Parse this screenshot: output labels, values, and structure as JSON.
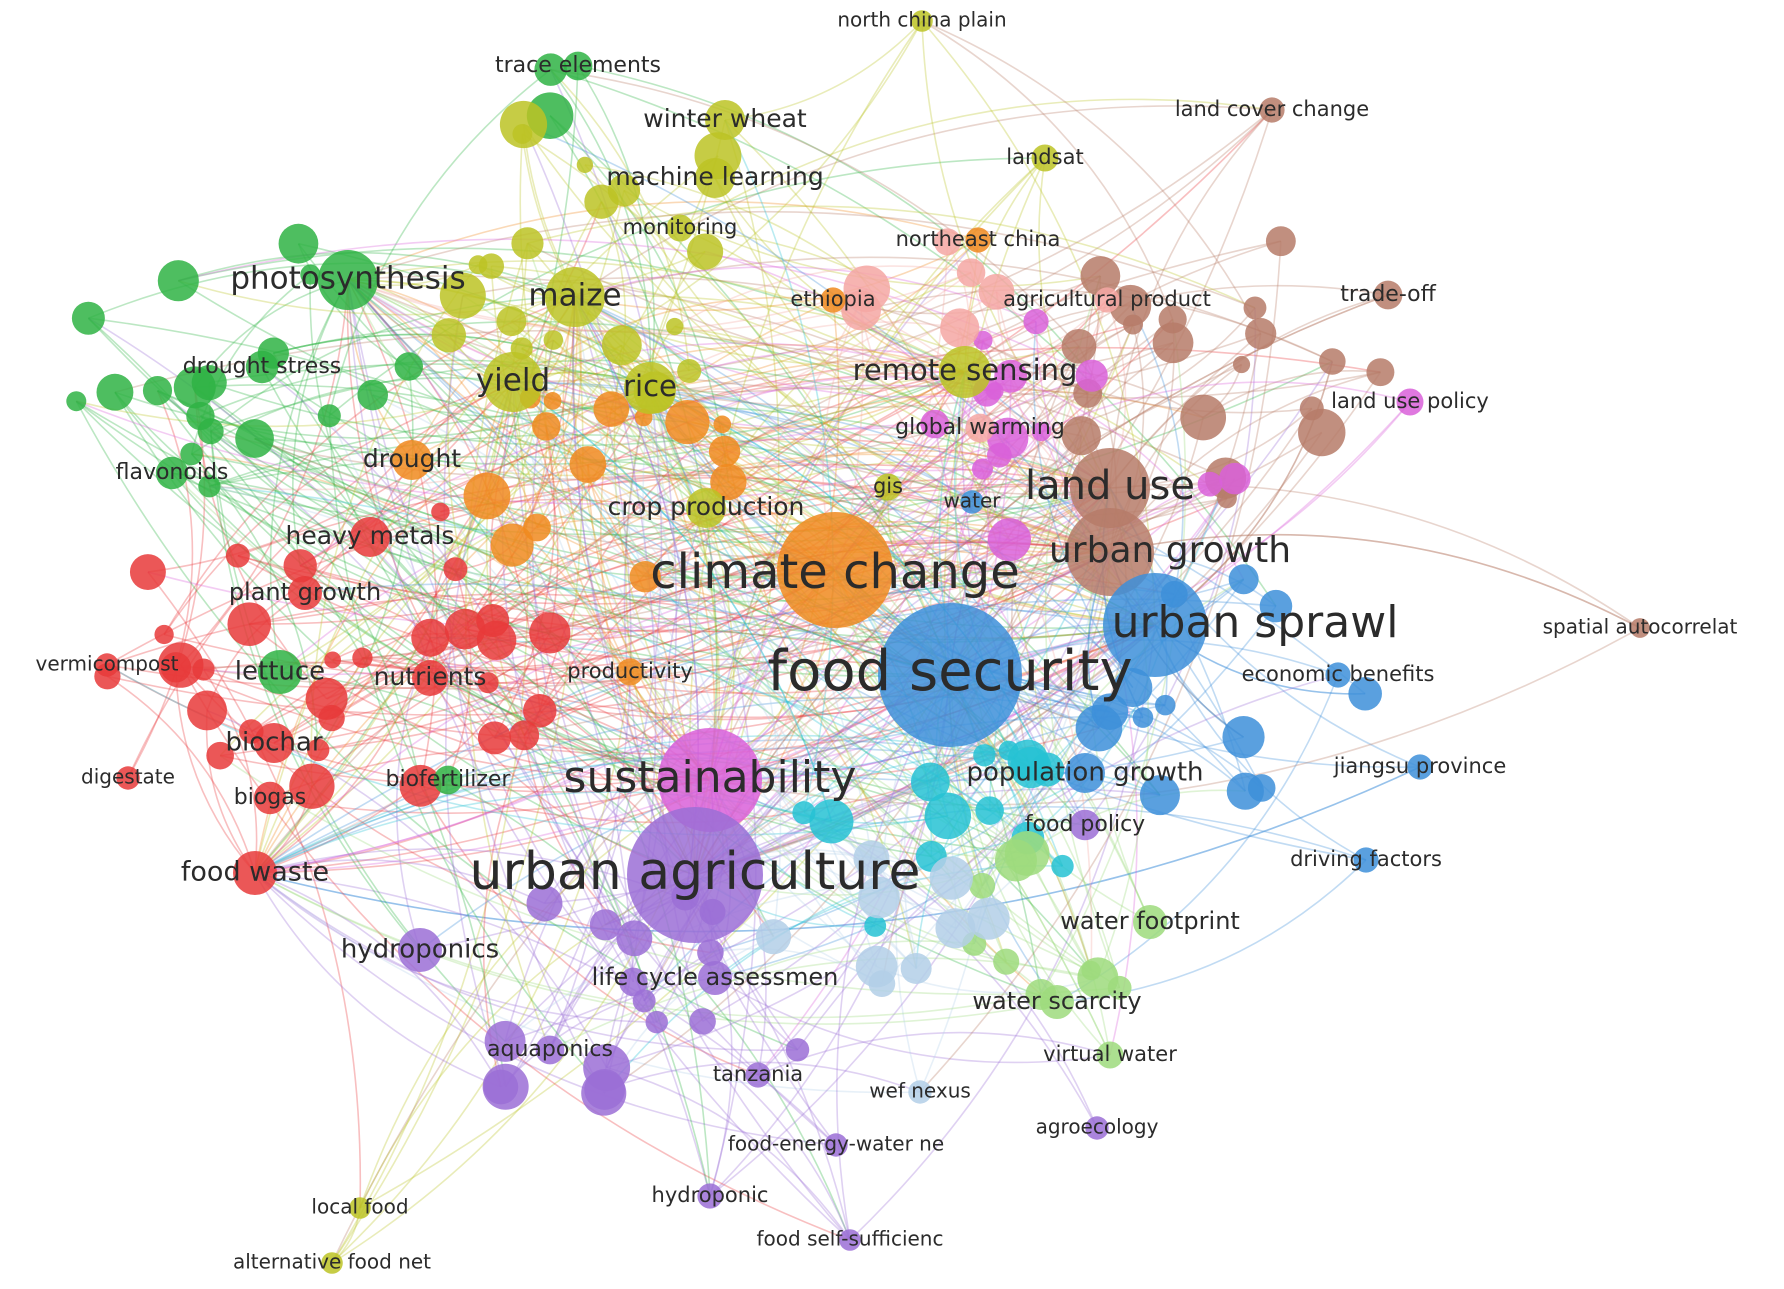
{
  "network": {
    "clusters": {
      "red": "#e8393a",
      "green": "#2fb344",
      "olive": "#bcc325",
      "orange": "#f08a1e",
      "brown": "#b67b68",
      "pink": "#d960d9",
      "blue": "#3d8fd9",
      "purple": "#9b6fd6",
      "cyan": "#26c2d4",
      "lightgreen": "#9ddb7c",
      "lightblue": "#b3cfe8",
      "salmon": "#f4a7a3"
    },
    "nodes": [
      {
        "id": "food-security",
        "label": "food security",
        "cluster": "blue",
        "weight": 10
      },
      {
        "id": "urban-agriculture",
        "label": "urban agriculture",
        "cluster": "purple",
        "weight": 9
      },
      {
        "id": "climate-change",
        "label": "climate change",
        "cluster": "orange",
        "weight": 8
      },
      {
        "id": "sustainability",
        "label": "sustainability",
        "cluster": "pink",
        "weight": 7
      },
      {
        "id": "land-use",
        "label": "land use",
        "cluster": "brown",
        "weight": 6
      },
      {
        "id": "urban-sprawl",
        "label": "urban sprawl",
        "cluster": "blue",
        "weight": 7
      },
      {
        "id": "urban-growth",
        "label": "urban growth",
        "cluster": "brown",
        "weight": 5
      },
      {
        "id": "yield",
        "label": "yield",
        "cluster": "olive",
        "weight": 4
      },
      {
        "id": "rice",
        "label": "rice",
        "cluster": "olive",
        "weight": 3.5
      },
      {
        "id": "maize",
        "label": "maize",
        "cluster": "olive",
        "weight": 4
      },
      {
        "id": "photosynthesis",
        "label": "photosynthesis",
        "cluster": "green",
        "weight": 4
      },
      {
        "id": "remote-sensing",
        "label": "remote sensing",
        "cluster": "olive",
        "weight": 3.5
      },
      {
        "id": "winter-wheat",
        "label": "winter wheat",
        "cluster": "olive",
        "weight": 2.5
      },
      {
        "id": "machine-learning",
        "label": "machine learning",
        "cluster": "olive",
        "weight": 2.5
      },
      {
        "id": "crop-production",
        "label": "crop production",
        "cluster": "olive",
        "weight": 2.5
      },
      {
        "id": "drought",
        "label": "drought",
        "cluster": "orange",
        "weight": 2.5
      },
      {
        "id": "heavy-metals",
        "label": "heavy metals",
        "cluster": "red",
        "weight": 2.5
      },
      {
        "id": "plant-growth",
        "label": "plant growth",
        "cluster": "red",
        "weight": 2.2
      },
      {
        "id": "lettuce",
        "label": "lettuce",
        "cluster": "green",
        "weight": 2.8
      },
      {
        "id": "nutrients",
        "label": "nutrients",
        "cluster": "red",
        "weight": 2.4
      },
      {
        "id": "biochar",
        "label": "biochar",
        "cluster": "red",
        "weight": 2.6
      },
      {
        "id": "biogas",
        "label": "biogas",
        "cluster": "red",
        "weight": 1.8
      },
      {
        "id": "food-waste",
        "label": "food waste",
        "cluster": "red",
        "weight": 3
      },
      {
        "id": "hydroponics",
        "label": "hydroponics",
        "cluster": "purple",
        "weight": 2.8
      },
      {
        "id": "life-cycle-assessment",
        "label": "life cycle assessmen",
        "cluster": "purple",
        "weight": 2.2
      },
      {
        "id": "population-growth",
        "label": "population growth",
        "cluster": "blue",
        "weight": 2.6
      },
      {
        "id": "water-footprint",
        "label": "water footprint",
        "cluster": "lightgreen",
        "weight": 2.2
      },
      {
        "id": "water-scarcity",
        "label": "water scarcity",
        "cluster": "lightgreen",
        "weight": 2.2
      },
      {
        "id": "virtual-water",
        "label": "virtual water",
        "cluster": "lightgreen",
        "weight": 1.5
      },
      {
        "id": "food-policy",
        "label": "food policy",
        "cluster": "purple",
        "weight": 1.7
      },
      {
        "id": "economic-benefits",
        "label": "economic benefits",
        "cluster": "blue",
        "weight": 1.4
      },
      {
        "id": "jiangsu-province",
        "label": "jiangsu province",
        "cluster": "blue",
        "weight": 1.4
      },
      {
        "id": "driving-factors",
        "label": "driving factors",
        "cluster": "blue",
        "weight": 1.4
      },
      {
        "id": "spatial-autocorrelation",
        "label": "spatial autocorrelat",
        "cluster": "brown",
        "weight": 1.1
      },
      {
        "id": "land-use-policy",
        "label": "land use policy",
        "cluster": "pink",
        "weight": 1.5
      },
      {
        "id": "trade-off",
        "label": "trade-off",
        "cluster": "brown",
        "weight": 1.6
      },
      {
        "id": "agricultural-product",
        "label": "agricultural product",
        "cluster": "salmon",
        "weight": 1.4
      },
      {
        "id": "northeast-china",
        "label": "northeast china",
        "cluster": "orange",
        "weight": 1.4
      },
      {
        "id": "land-cover-change",
        "label": "land cover change",
        "cluster": "brown",
        "weight": 1.4
      },
      {
        "id": "landsat",
        "label": "landsat",
        "cluster": "olive",
        "weight": 1.5
      },
      {
        "id": "north-china-plain",
        "label": "north china plain",
        "cluster": "olive",
        "weight": 1.2
      },
      {
        "id": "trace-elements",
        "label": "trace elements",
        "cluster": "green",
        "weight": 1.6
      },
      {
        "id": "monitoring",
        "label": "monitoring",
        "cluster": "olive",
        "weight": 1.5
      },
      {
        "id": "ethiopia",
        "label": "ethiopia",
        "cluster": "orange",
        "weight": 1.4
      },
      {
        "id": "global-warming",
        "label": "global warming",
        "cluster": "salmon",
        "weight": 1.6
      },
      {
        "id": "gis",
        "label": "gis",
        "cluster": "olive",
        "weight": 1.5
      },
      {
        "id": "water",
        "label": "water",
        "cluster": "blue",
        "weight": 1.3
      },
      {
        "id": "drought-stress",
        "label": "drought stress",
        "cluster": "green",
        "weight": 1.8
      },
      {
        "id": "flavonoids",
        "label": "flavonoids",
        "cluster": "green",
        "weight": 1.8
      },
      {
        "id": "vermicompost",
        "label": "vermicompost",
        "cluster": "red",
        "weight": 1.3
      },
      {
        "id": "digestate",
        "label": "digestate",
        "cluster": "red",
        "weight": 1.3
      },
      {
        "id": "biofertilizer",
        "label": "biofertilizer",
        "cluster": "green",
        "weight": 1.6
      },
      {
        "id": "productivity",
        "label": "productivity",
        "cluster": "orange",
        "weight": 1.5
      },
      {
        "id": "aquaponics",
        "label": "aquaponics",
        "cluster": "purple",
        "weight": 1.6
      },
      {
        "id": "tanzania",
        "label": "tanzania",
        "cluster": "purple",
        "weight": 1.4
      },
      {
        "id": "wef-nexus",
        "label": "wef nexus",
        "cluster": "lightblue",
        "weight": 1.3
      },
      {
        "id": "agroecology",
        "label": "agroecology",
        "cluster": "purple",
        "weight": 1.3
      },
      {
        "id": "food-energy-water-nexus",
        "label": "food-energy-water ne",
        "cluster": "purple",
        "weight": 1.3
      },
      {
        "id": "hydroponic",
        "label": "hydroponic",
        "cluster": "purple",
        "weight": 1.4
      },
      {
        "id": "food-self-sufficiency",
        "label": "food self-sufficienc",
        "cluster": "purple",
        "weight": 1.2
      },
      {
        "id": "local-food",
        "label": "local food",
        "cluster": "olive",
        "weight": 1.2
      },
      {
        "id": "alternative-food-networks",
        "label": "alternative food net",
        "cluster": "olive",
        "weight": 1.2
      }
    ]
  }
}
